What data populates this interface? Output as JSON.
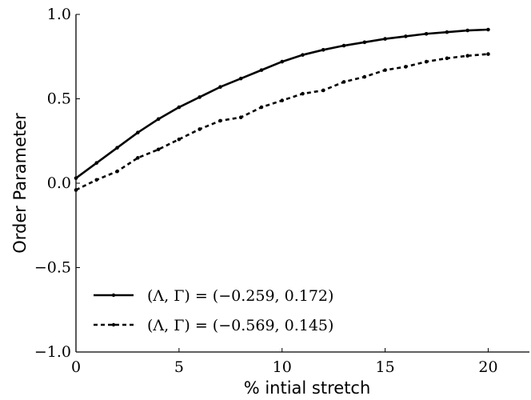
{
  "chart_data": {
    "type": "line",
    "xlabel": "% intial stretch",
    "ylabel": "Order Parameter",
    "xlim": [
      0,
      22
    ],
    "ylim": [
      -1.0,
      1.0
    ],
    "xticks": [
      "0",
      "5",
      "10",
      "15",
      "20"
    ],
    "xtick_values": [
      0,
      5,
      10,
      15,
      20
    ],
    "yticks": [
      "−1.0",
      "−0.5",
      "0.0",
      "0.5",
      "1.0"
    ],
    "ytick_values": [
      -1.0,
      -0.5,
      0.0,
      0.5,
      1.0
    ],
    "grid": false,
    "legend_position": "bottom-left",
    "x": [
      0,
      1,
      2,
      3,
      4,
      5,
      6,
      7,
      8,
      9,
      10,
      11,
      12,
      13,
      14,
      15,
      16,
      17,
      18,
      19,
      20
    ],
    "series": [
      {
        "name": "(Λ, Γ) = (−0.259, 0.172)",
        "style": "solid",
        "color": "#000000",
        "values": [
          0.03,
          0.12,
          0.21,
          0.3,
          0.38,
          0.45,
          0.51,
          0.57,
          0.62,
          0.67,
          0.72,
          0.76,
          0.79,
          0.815,
          0.835,
          0.855,
          0.87,
          0.885,
          0.895,
          0.905,
          0.91
        ]
      },
      {
        "name": "(Λ, Γ) = (−0.569, 0.145)",
        "style": "dashed",
        "color": "#000000",
        "values": [
          -0.04,
          0.02,
          0.07,
          0.15,
          0.2,
          0.26,
          0.32,
          0.37,
          0.39,
          0.45,
          0.49,
          0.53,
          0.55,
          0.6,
          0.63,
          0.67,
          0.69,
          0.72,
          0.74,
          0.755,
          0.765
        ]
      }
    ]
  }
}
